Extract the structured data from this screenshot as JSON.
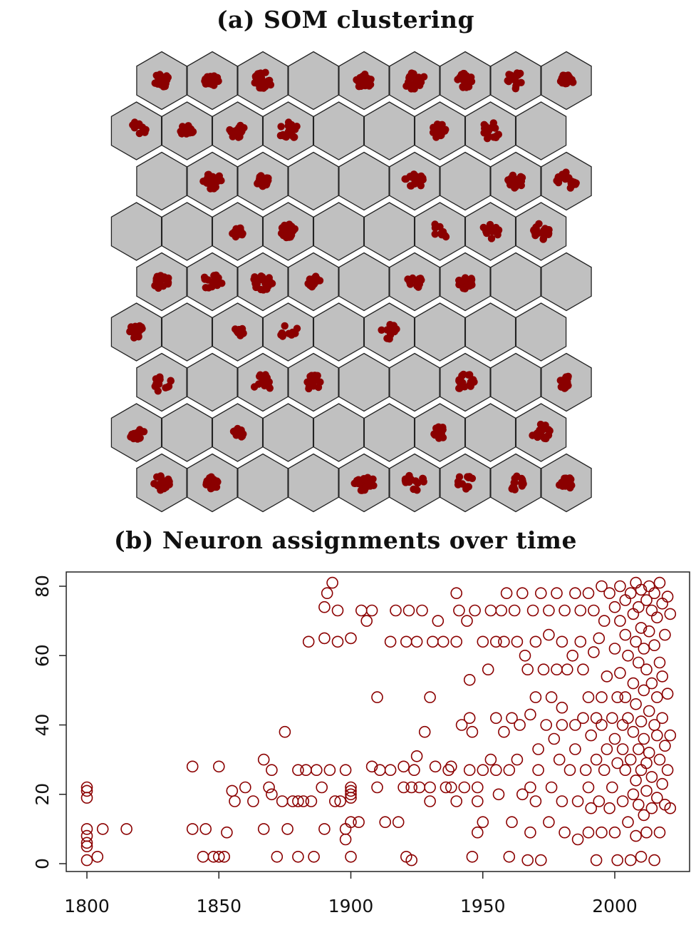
{
  "chart_data": [
    {
      "type": "scatter",
      "title": "(a) SOM clustering",
      "grid": "hexagonal",
      "rows": 9,
      "cols": 9,
      "cell_color": "#c0c0c0",
      "point_color": "#8b0000",
      "occupied_cells": [
        [
          0,
          0
        ],
        [
          1,
          0
        ],
        [
          2,
          0
        ],
        [
          4,
          0
        ],
        [
          5,
          0
        ],
        [
          6,
          0
        ],
        [
          7,
          0
        ],
        [
          8,
          0
        ],
        [
          0,
          1
        ],
        [
          1,
          1
        ],
        [
          2,
          1
        ],
        [
          3,
          1
        ],
        [
          6,
          1
        ],
        [
          7,
          1
        ],
        [
          1,
          2
        ],
        [
          2,
          2
        ],
        [
          5,
          2
        ],
        [
          7,
          2
        ],
        [
          8,
          2
        ],
        [
          2,
          3
        ],
        [
          3,
          3
        ],
        [
          6,
          3
        ],
        [
          7,
          3
        ],
        [
          8,
          3
        ],
        [
          0,
          4
        ],
        [
          1,
          4
        ],
        [
          2,
          4
        ],
        [
          3,
          4
        ],
        [
          5,
          4
        ],
        [
          6,
          4
        ],
        [
          0,
          5
        ],
        [
          2,
          5
        ],
        [
          3,
          5
        ],
        [
          5,
          5
        ],
        [
          0,
          6
        ],
        [
          2,
          6
        ],
        [
          3,
          6
        ],
        [
          6,
          6
        ],
        [
          8,
          6
        ],
        [
          0,
          7
        ],
        [
          2,
          7
        ],
        [
          6,
          7
        ],
        [
          8,
          7
        ],
        [
          0,
          8
        ],
        [
          1,
          8
        ],
        [
          4,
          8
        ],
        [
          5,
          8
        ],
        [
          6,
          8
        ],
        [
          7,
          8
        ],
        [
          8,
          8
        ]
      ]
    },
    {
      "type": "scatter",
      "title": "(b) Neuron assignments over time",
      "xlabel": "",
      "ylabel": "",
      "xlim": [
        1792,
        2028
      ],
      "ylim": [
        -3,
        84
      ],
      "xticks": [
        1800,
        1850,
        1900,
        1950,
        2000
      ],
      "yticks": [
        0,
        20,
        40,
        60,
        80
      ],
      "marker": "open-circle",
      "color": "#8b0000",
      "points": [
        [
          1800,
          1
        ],
        [
          1800,
          5
        ],
        [
          1800,
          6
        ],
        [
          1800,
          8
        ],
        [
          1800,
          10
        ],
        [
          1800,
          19
        ],
        [
          1800,
          21
        ],
        [
          1800,
          22
        ],
        [
          1804,
          2
        ],
        [
          1806,
          10
        ],
        [
          1815,
          10
        ],
        [
          1840,
          10
        ],
        [
          1840,
          28
        ],
        [
          1844,
          2
        ],
        [
          1845,
          10
        ],
        [
          1848,
          2
        ],
        [
          1850,
          2
        ],
        [
          1850,
          28
        ],
        [
          1852,
          2
        ],
        [
          1853,
          9
        ],
        [
          1855,
          21
        ],
        [
          1856,
          18
        ],
        [
          1860,
          22
        ],
        [
          1863,
          18
        ],
        [
          1867,
          10
        ],
        [
          1867,
          30
        ],
        [
          1869,
          22
        ],
        [
          1870,
          27
        ],
        [
          1870,
          20
        ],
        [
          1872,
          2
        ],
        [
          1874,
          18
        ],
        [
          1875,
          38
        ],
        [
          1876,
          10
        ],
        [
          1878,
          18
        ],
        [
          1880,
          18
        ],
        [
          1880,
          2
        ],
        [
          1880,
          27
        ],
        [
          1882,
          18
        ],
        [
          1883,
          27
        ],
        [
          1884,
          64
        ],
        [
          1885,
          18
        ],
        [
          1886,
          2
        ],
        [
          1887,
          27
        ],
        [
          1889,
          22
        ],
        [
          1890,
          10
        ],
        [
          1890,
          65
        ],
        [
          1891,
          78
        ],
        [
          1890,
          74
        ],
        [
          1892,
          27
        ],
        [
          1893,
          81
        ],
        [
          1894,
          18
        ],
        [
          1895,
          64
        ],
        [
          1895,
          73
        ],
        [
          1896,
          18
        ],
        [
          1898,
          7
        ],
        [
          1898,
          10
        ],
        [
          1898,
          27
        ],
        [
          1900,
          2
        ],
        [
          1900,
          12
        ],
        [
          1900,
          19
        ],
        [
          1900,
          20
        ],
        [
          1900,
          21
        ],
        [
          1900,
          22
        ],
        [
          1900,
          65
        ],
        [
          1903,
          12
        ],
        [
          1904,
          73
        ],
        [
          1906,
          70
        ],
        [
          1908,
          73
        ],
        [
          1908,
          28
        ],
        [
          1910,
          48
        ],
        [
          1910,
          22
        ],
        [
          1911,
          27
        ],
        [
          1913,
          12
        ],
        [
          1915,
          64
        ],
        [
          1915,
          27
        ],
        [
          1917,
          73
        ],
        [
          1918,
          12
        ],
        [
          1920,
          22
        ],
        [
          1920,
          28
        ],
        [
          1921,
          64
        ],
        [
          1921,
          2
        ],
        [
          1922,
          73
        ],
        [
          1923,
          1
        ],
        [
          1923,
          22
        ],
        [
          1924,
          27
        ],
        [
          1925,
          31
        ],
        [
          1925,
          64
        ],
        [
          1926,
          22
        ],
        [
          1927,
          73
        ],
        [
          1928,
          38
        ],
        [
          1930,
          48
        ],
        [
          1930,
          18
        ],
        [
          1930,
          22
        ],
        [
          1931,
          64
        ],
        [
          1932,
          28
        ],
        [
          1933,
          70
        ],
        [
          1935,
          64
        ],
        [
          1936,
          22
        ],
        [
          1937,
          27
        ],
        [
          1938,
          28
        ],
        [
          1938,
          22
        ],
        [
          1940,
          78
        ],
        [
          1940,
          64
        ],
        [
          1940,
          18
        ],
        [
          1941,
          73
        ],
        [
          1942,
          40
        ],
        [
          1943,
          22
        ],
        [
          1944,
          70
        ],
        [
          1945,
          42
        ],
        [
          1945,
          53
        ],
        [
          1945,
          27
        ],
        [
          1946,
          38
        ],
        [
          1946,
          2
        ],
        [
          1947,
          73
        ],
        [
          1948,
          9
        ],
        [
          1948,
          18
        ],
        [
          1948,
          22
        ],
        [
          1950,
          64
        ],
        [
          1950,
          27
        ],
        [
          1950,
          12
        ],
        [
          1952,
          56
        ],
        [
          1953,
          73
        ],
        [
          1953,
          30
        ],
        [
          1955,
          42
        ],
        [
          1955,
          64
        ],
        [
          1955,
          27
        ],
        [
          1956,
          20
        ],
        [
          1957,
          73
        ],
        [
          1958,
          64
        ],
        [
          1958,
          38
        ],
        [
          1959,
          78
        ],
        [
          1960,
          27
        ],
        [
          1960,
          2
        ],
        [
          1961,
          42
        ],
        [
          1961,
          12
        ],
        [
          1962,
          73
        ],
        [
          1963,
          64
        ],
        [
          1963,
          30
        ],
        [
          1964,
          40
        ],
        [
          1965,
          78
        ],
        [
          1965,
          20
        ],
        [
          1966,
          60
        ],
        [
          1967,
          56
        ],
        [
          1967,
          1
        ],
        [
          1968,
          43
        ],
        [
          1968,
          22
        ],
        [
          1968,
          9
        ],
        [
          1969,
          73
        ],
        [
          1970,
          64
        ],
        [
          1970,
          48
        ],
        [
          1970,
          18
        ],
        [
          1971,
          33
        ],
        [
          1971,
          27
        ],
        [
          1972,
          78
        ],
        [
          1972,
          1
        ],
        [
          1973,
          56
        ],
        [
          1974,
          40
        ],
        [
          1975,
          73
        ],
        [
          1975,
          66
        ],
        [
          1975,
          12
        ],
        [
          1976,
          48
        ],
        [
          1976,
          22
        ],
        [
          1977,
          36
        ],
        [
          1978,
          78
        ],
        [
          1978,
          56
        ],
        [
          1979,
          30
        ],
        [
          1980,
          40
        ],
        [
          1980,
          64
        ],
        [
          1980,
          45
        ],
        [
          1980,
          18
        ],
        [
          1981,
          73
        ],
        [
          1981,
          9
        ],
        [
          1982,
          56
        ],
        [
          1983,
          27
        ],
        [
          1984,
          60
        ],
        [
          1985,
          78
        ],
        [
          1985,
          40
        ],
        [
          1985,
          33
        ],
        [
          1986,
          18
        ],
        [
          1986,
          7
        ],
        [
          1987,
          73
        ],
        [
          1987,
          64
        ],
        [
          1988,
          42
        ],
        [
          1988,
          56
        ],
        [
          1989,
          27
        ],
        [
          1990,
          78
        ],
        [
          1990,
          48
        ],
        [
          1990,
          22
        ],
        [
          1990,
          9
        ],
        [
          1991,
          37
        ],
        [
          1991,
          16
        ],
        [
          1992,
          73
        ],
        [
          1992,
          61
        ],
        [
          1993,
          42
        ],
        [
          1993,
          30
        ],
        [
          1993,
          1
        ],
        [
          1994,
          65
        ],
        [
          1994,
          18
        ],
        [
          1995,
          80
        ],
        [
          1995,
          48
        ],
        [
          1995,
          40
        ],
        [
          1995,
          9
        ],
        [
          1996,
          27
        ],
        [
          1996,
          70
        ],
        [
          1997,
          33
        ],
        [
          1997,
          54
        ],
        [
          1998,
          78
        ],
        [
          1998,
          16
        ],
        [
          1999,
          42
        ],
        [
          1999,
          22
        ],
        [
          2000,
          74
        ],
        [
          2000,
          62
        ],
        [
          2000,
          36
        ],
        [
          2000,
          9
        ],
        [
          2001,
          48
        ],
        [
          2001,
          29
        ],
        [
          2001,
          1
        ],
        [
          2002,
          80
        ],
        [
          2002,
          70
        ],
        [
          2002,
          55
        ],
        [
          2003,
          40
        ],
        [
          2003,
          18
        ],
        [
          2003,
          33
        ],
        [
          2004,
          76
        ],
        [
          2004,
          66
        ],
        [
          2004,
          48
        ],
        [
          2004,
          27
        ],
        [
          2005,
          42
        ],
        [
          2005,
          12
        ],
        [
          2005,
          60
        ],
        [
          2006,
          78
        ],
        [
          2006,
          30
        ],
        [
          2006,
          1
        ],
        [
          2007,
          72
        ],
        [
          2007,
          52
        ],
        [
          2007,
          38
        ],
        [
          2007,
          20
        ],
        [
          2008,
          81
        ],
        [
          2008,
          64
        ],
        [
          2008,
          46
        ],
        [
          2008,
          24
        ],
        [
          2008,
          8
        ],
        [
          2009,
          74
        ],
        [
          2009,
          58
        ],
        [
          2009,
          33
        ],
        [
          2009,
          17
        ],
        [
          2010,
          79
        ],
        [
          2010,
          68
        ],
        [
          2010,
          41
        ],
        [
          2010,
          27
        ],
        [
          2010,
          2
        ],
        [
          2011,
          62
        ],
        [
          2011,
          50
        ],
        [
          2011,
          36
        ],
        [
          2011,
          14
        ],
        [
          2012,
          76
        ],
        [
          2012,
          56
        ],
        [
          2012,
          29
        ],
        [
          2012,
          21
        ],
        [
          2012,
          9
        ],
        [
          2013,
          80
        ],
        [
          2013,
          67
        ],
        [
          2013,
          44
        ],
        [
          2013,
          32
        ],
        [
          2014,
          73
        ],
        [
          2014,
          52
        ],
        [
          2014,
          25
        ],
        [
          2014,
          16
        ],
        [
          2015,
          78
        ],
        [
          2015,
          63
        ],
        [
          2015,
          40
        ],
        [
          2015,
          1
        ],
        [
          2016,
          71
        ],
        [
          2016,
          48
        ],
        [
          2016,
          37
        ],
        [
          2016,
          19
        ],
        [
          2017,
          81
        ],
        [
          2017,
          58
        ],
        [
          2017,
          30
        ],
        [
          2017,
          9
        ],
        [
          2018,
          75
        ],
        [
          2018,
          54
        ],
        [
          2018,
          42
        ],
        [
          2018,
          23
        ],
        [
          2019,
          66
        ],
        [
          2019,
          34
        ],
        [
          2019,
          17
        ],
        [
          2020,
          77
        ],
        [
          2020,
          49
        ],
        [
          2020,
          27
        ],
        [
          2021,
          72
        ],
        [
          2021,
          37
        ],
        [
          2021,
          16
        ]
      ]
    }
  ]
}
